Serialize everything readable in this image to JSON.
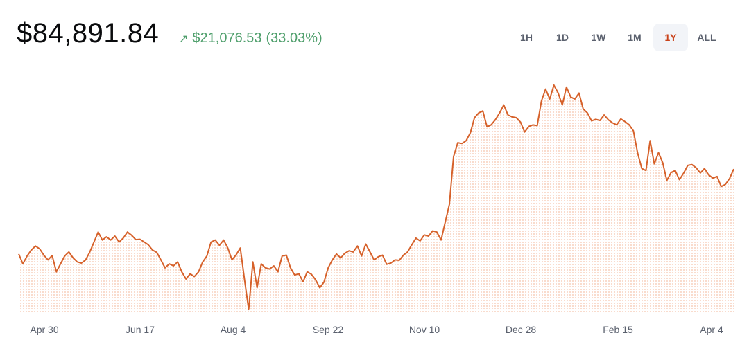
{
  "header": {
    "price": "$84,891.84",
    "change_arrow": "↗",
    "change_amount": "$21,076.53",
    "change_percent": "(33.03%)"
  },
  "ranges": [
    {
      "label": "1H",
      "active": false
    },
    {
      "label": "1D",
      "active": false
    },
    {
      "label": "1W",
      "active": false
    },
    {
      "label": "1M",
      "active": false
    },
    {
      "label": "1Y",
      "active": true
    },
    {
      "label": "ALL",
      "active": false
    }
  ],
  "colors": {
    "line": "#d6612a",
    "fill": "#f5c7ad",
    "positive": "#4f9f6c",
    "active_range": "#c9421a"
  },
  "chart_data": {
    "type": "area",
    "x_tick_labels": [
      "Apr 30",
      "Jun 17",
      "Aug 4",
      "Sep 22",
      "Nov 10",
      "Dec 28",
      "Feb 15",
      "Apr 4"
    ],
    "ylim": [
      49000,
      110000
    ],
    "values": [
      63500,
      61000,
      63000,
      64500,
      65500,
      64800,
      63200,
      62000,
      63100,
      59000,
      61000,
      63000,
      64000,
      62500,
      61500,
      61200,
      62000,
      64000,
      66500,
      69000,
      67000,
      67800,
      67000,
      68000,
      66500,
      67500,
      69000,
      68200,
      67100,
      67200,
      66500,
      65800,
      64500,
      63900,
      62000,
      60000,
      61000,
      60500,
      61500,
      59000,
      57200,
      58500,
      57800,
      59000,
      61500,
      63000,
      66500,
      67000,
      65700,
      67000,
      65000,
      62000,
      63300,
      65000,
      57000,
      49500,
      61500,
      55000,
      61000,
      60000,
      59700,
      60500,
      59000,
      63000,
      63200,
      60000,
      58200,
      58500,
      56500,
      59000,
      58400,
      57000,
      55000,
      56400,
      60000,
      62000,
      63500,
      62500,
      63700,
      64300,
      64000,
      65500,
      63000,
      66000,
      64000,
      62000,
      62800,
      63200,
      60900,
      61200,
      62000,
      61900,
      63200,
      64000,
      65800,
      67500,
      66800,
      68300,
      68000,
      69300,
      69000,
      67000,
      71500,
      76000,
      88000,
      91500,
      91300,
      92000,
      94000,
      97800,
      99000,
      99500,
      95500,
      96000,
      97300,
      99000,
      101000,
      98500,
      98000,
      97800,
      96700,
      94200,
      95600,
      96000,
      95800,
      102000,
      105000,
      102500,
      106000,
      104000,
      101000,
      105500,
      103000,
      102500,
      104000,
      100000,
      99000,
      97000,
      97400,
      97100,
      98500,
      97300,
      96500,
      96000,
      97500,
      96800,
      96000,
      94500,
      89000,
      85000,
      84500,
      92000,
      86200,
      89000,
      86500,
      82000,
      84000,
      84500,
      82200,
      83800,
      85800,
      86000,
      85200,
      83900,
      85000,
      83400,
      82600,
      83000,
      80500,
      81000,
      82500,
      84891
    ]
  }
}
